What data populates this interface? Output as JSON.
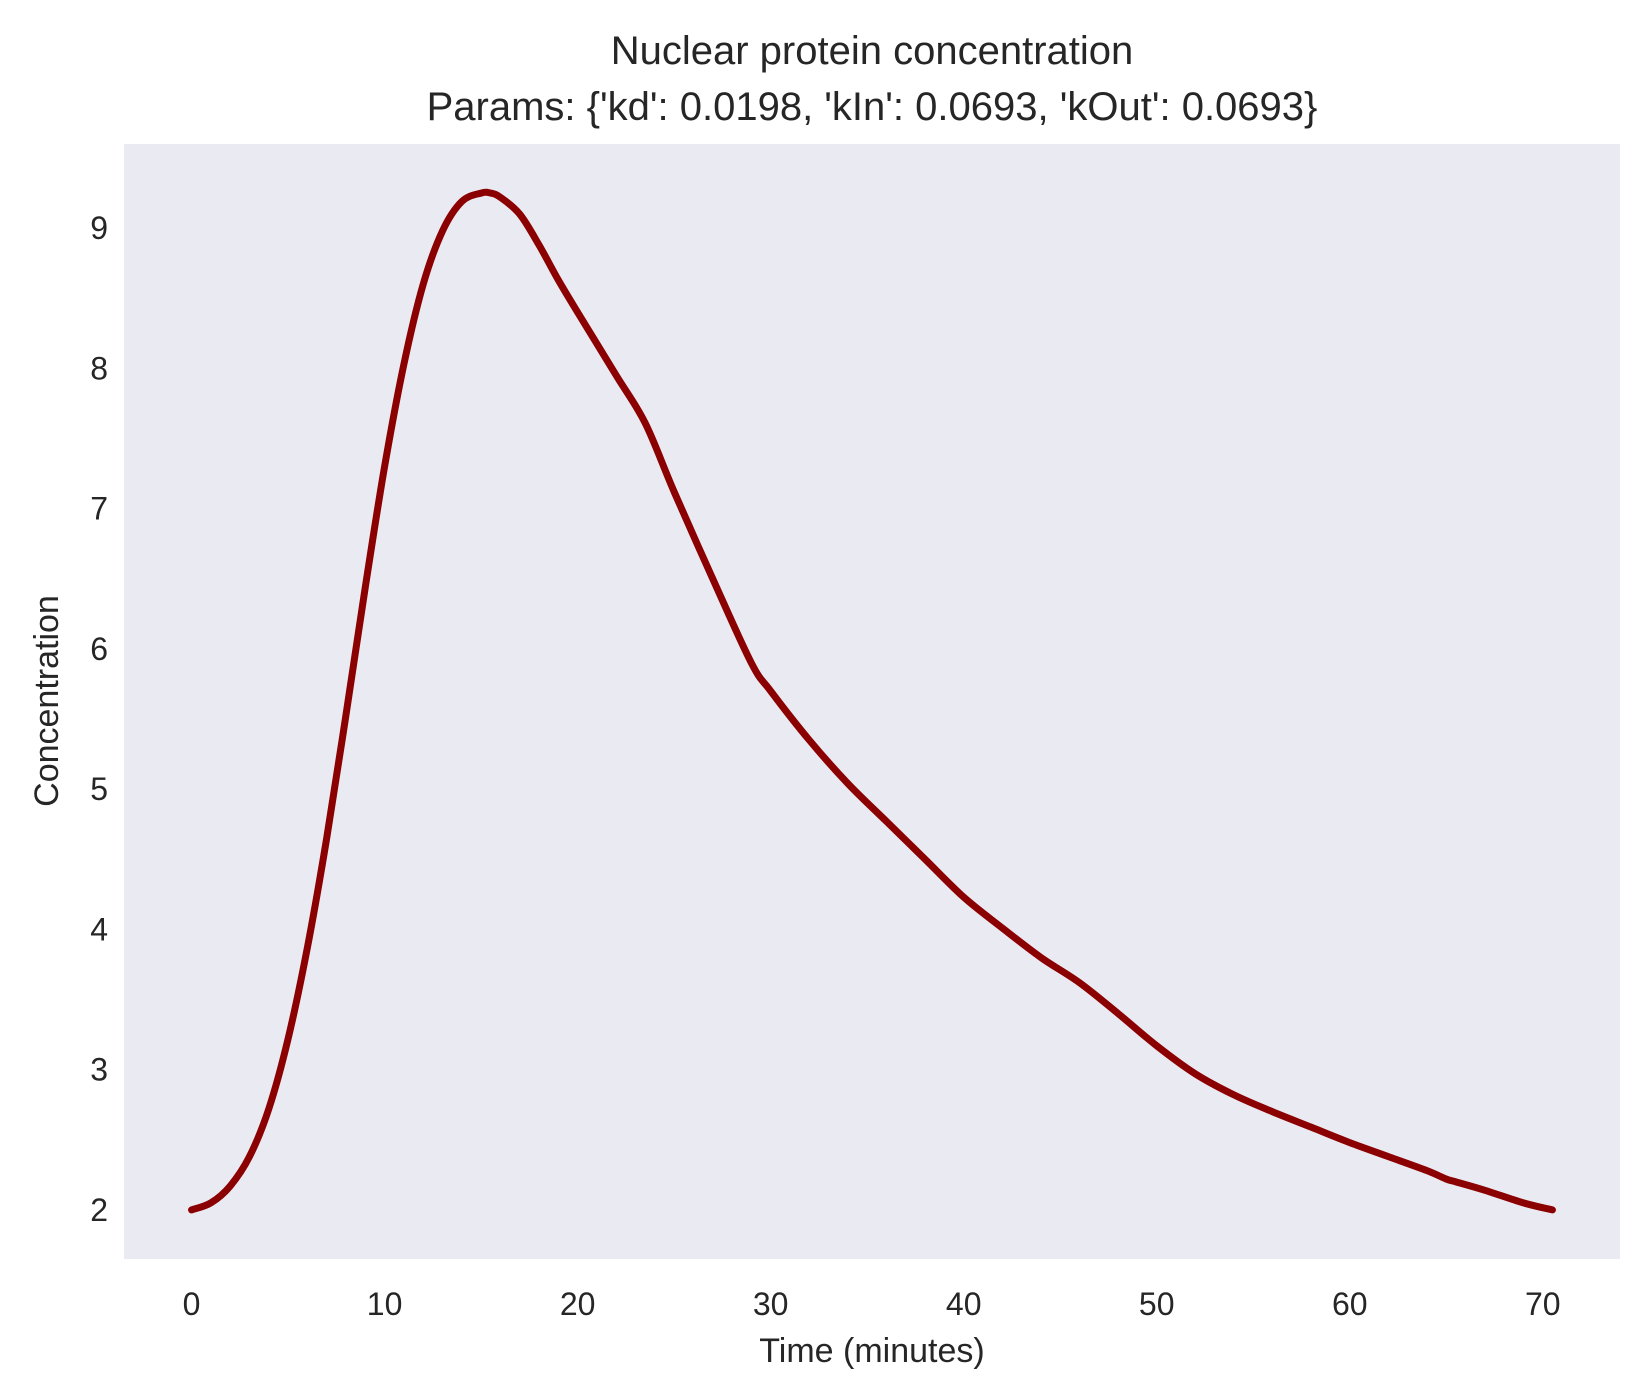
{
  "chart_data": {
    "type": "line",
    "title": "Nuclear protein concentration",
    "subtitle": "Params: {'kd': 0.0198, 'kIn': 0.0693, 'kOut': 0.0693}",
    "xlabel": "Time (minutes)",
    "ylabel": "Concentration",
    "xlim": [
      -3.5,
      74
    ],
    "ylim": [
      1.65,
      9.6
    ],
    "x_ticks": [
      0,
      10,
      20,
      30,
      40,
      50,
      60,
      70
    ],
    "y_ticks": [
      2,
      3,
      4,
      5,
      6,
      7,
      8,
      9
    ],
    "grid": false,
    "colors": {
      "plot_background": "#eaeaf2",
      "line": "#8b0000",
      "text": "#262626"
    },
    "series": [
      {
        "x": [
          0,
          1,
          2,
          3,
          4,
          5,
          6,
          7,
          8,
          9,
          10,
          11,
          12,
          13,
          14,
          15,
          15.5,
          16,
          17,
          18,
          19,
          20,
          22,
          23.5,
          25,
          27,
          29,
          30,
          32,
          34,
          36,
          38,
          40,
          42,
          44,
          46,
          48,
          50,
          52,
          54,
          56,
          58,
          60,
          62,
          64,
          65,
          65.5,
          67,
          69,
          70.5
        ],
        "y": [
          2.0,
          2.05,
          2.17,
          2.38,
          2.72,
          3.22,
          3.87,
          4.65,
          5.53,
          6.44,
          7.3,
          8.03,
          8.6,
          8.98,
          9.19,
          9.25,
          9.25,
          9.22,
          9.1,
          8.88,
          8.63,
          8.4,
          7.95,
          7.61,
          7.12,
          6.5,
          5.9,
          5.7,
          5.35,
          5.04,
          4.77,
          4.5,
          4.23,
          4.01,
          3.8,
          3.62,
          3.4,
          3.17,
          2.97,
          2.82,
          2.7,
          2.59,
          2.48,
          2.38,
          2.28,
          2.22,
          2.2,
          2.14,
          2.05,
          2.0
        ]
      }
    ]
  }
}
